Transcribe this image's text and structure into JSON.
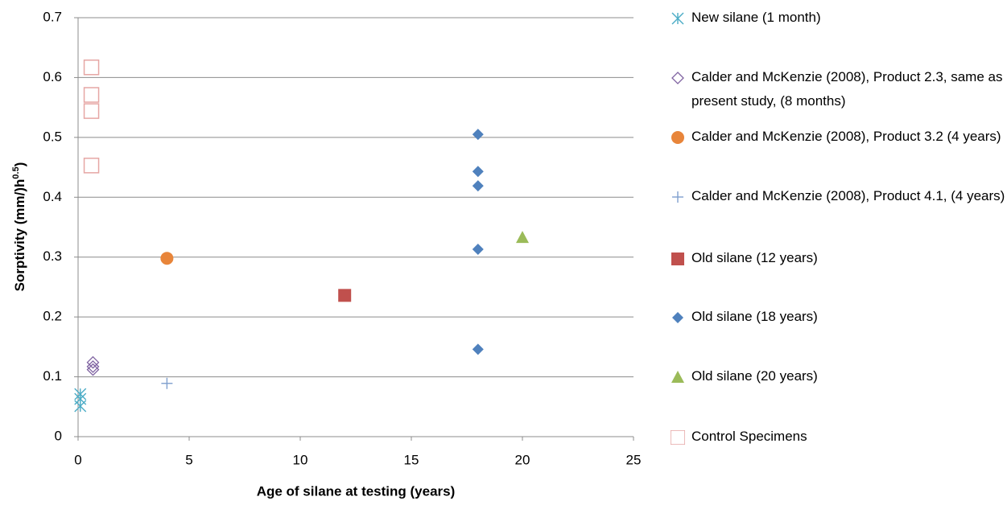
{
  "chart_data": {
    "type": "scatter",
    "xlabel": "Age of silane at testing (years)",
    "ylabel": [
      "Sorptivity (mm/)h",
      "0.5",
      ")"
    ],
    "xlim": [
      0,
      25
    ],
    "xticks": [
      0,
      5,
      10,
      15,
      20,
      25
    ],
    "ylim": [
      0,
      0.7
    ],
    "yticks": [
      0,
      0.1,
      0.2,
      0.3,
      0.4,
      0.5,
      0.6,
      0.7
    ],
    "grid": true,
    "legend": "right",
    "series": [
      {
        "name": "New silane (1 month)",
        "color": "#4bacc6",
        "marker": "asterisk",
        "x": [
          0.1,
          0.1,
          0.1
        ],
        "values": [
          0.071,
          0.063,
          0.051
        ]
      },
      {
        "name": "Calder and McKenzie (2008), Product 2.3, same as present study, (8 months)",
        "color": "#8064a2",
        "marker": "diamond-open",
        "x": [
          0.67,
          0.67,
          0.67
        ],
        "values": [
          0.124,
          0.117,
          0.112
        ]
      },
      {
        "name": "Calder and McKenzie (2008), Product 3.2 (4 years)",
        "color": "#e8853a",
        "marker": "circle",
        "x": [
          4
        ],
        "values": [
          0.298
        ]
      },
      {
        "name": "Calder and McKenzie (2008), Product 4.1, (4 years)",
        "color": "#7f9fce",
        "marker": "plus",
        "x": [
          4
        ],
        "values": [
          0.089
        ]
      },
      {
        "name": "Old silane (12 years)",
        "color": "#c0504d",
        "marker": "square",
        "x": [
          12
        ],
        "values": [
          0.236
        ]
      },
      {
        "name": "Old silane (18 years)",
        "color": "#4f81bd",
        "marker": "diamond",
        "x": [
          18,
          18,
          18,
          18,
          18
        ],
        "values": [
          0.505,
          0.443,
          0.419,
          0.313,
          0.146
        ]
      },
      {
        "name": "Old silane (20 years)",
        "color": "#9bbb59",
        "marker": "triangle",
        "x": [
          20
        ],
        "values": [
          0.333
        ]
      },
      {
        "name": "Control Specimens",
        "color": "#e6a6a4",
        "marker": "square-open",
        "x": [
          0.6,
          0.6,
          0.6,
          0.6
        ],
        "values": [
          0.617,
          0.571,
          0.544,
          0.453
        ]
      }
    ]
  }
}
